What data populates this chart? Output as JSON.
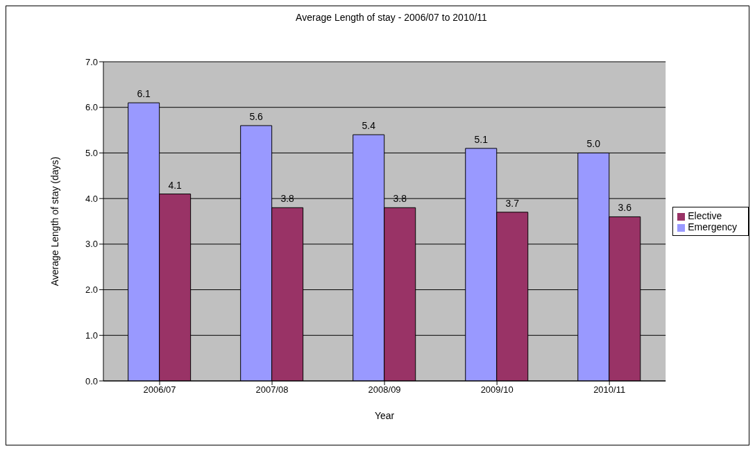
{
  "chart_data": {
    "type": "bar",
    "title": "Average Length of stay - 2006/07 to 2010/11",
    "xlabel": "Year",
    "ylabel": "Average Length of stay (days)",
    "categories": [
      "2006/07",
      "2007/08",
      "2008/09",
      "2009/10",
      "2010/11"
    ],
    "series": [
      {
        "name": "Emergency",
        "color": "#9999ff",
        "values": [
          6.1,
          5.6,
          5.4,
          5.1,
          5.0
        ],
        "value_labels": [
          "6.1",
          "5.6",
          "5.4",
          "5.1",
          "5.0"
        ]
      },
      {
        "name": "Elective",
        "color": "#993366",
        "values": [
          4.1,
          3.8,
          3.8,
          3.7,
          3.6
        ],
        "value_labels": [
          "4.1",
          "3.8",
          "3.8",
          "3.7",
          "3.6"
        ]
      }
    ],
    "ylim": [
      0,
      7
    ],
    "yticks": [
      {
        "value": 0,
        "label": "0.0"
      },
      {
        "value": 1,
        "label": "1.0"
      },
      {
        "value": 2,
        "label": "2.0"
      },
      {
        "value": 3,
        "label": "3.0"
      },
      {
        "value": 4,
        "label": "4.0"
      },
      {
        "value": 5,
        "label": "5.0"
      },
      {
        "value": 6,
        "label": "6.0"
      },
      {
        "value": 7,
        "label": "7.0"
      }
    ],
    "grid": "y",
    "legend": "right"
  }
}
